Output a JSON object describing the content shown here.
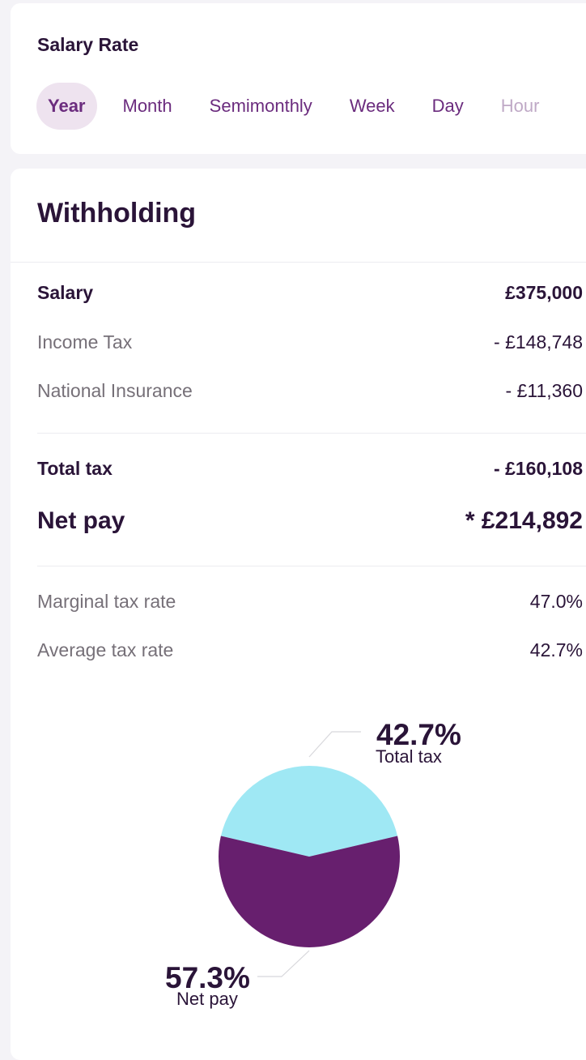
{
  "salary_rate": {
    "title": "Salary Rate",
    "tabs": [
      {
        "label": "Year",
        "active": true
      },
      {
        "label": "Month",
        "active": false
      },
      {
        "label": "Semimonthly",
        "active": false
      },
      {
        "label": "Week",
        "active": false
      },
      {
        "label": "Day",
        "active": false
      },
      {
        "label": "Hour",
        "active": false
      }
    ]
  },
  "withholding": {
    "title": "Withholding",
    "salary": {
      "label": "Salary",
      "value": "£375,000"
    },
    "income_tax": {
      "label": "Income Tax",
      "value": "- £148,748"
    },
    "national_insurance": {
      "label": "National Insurance",
      "value": "- £11,360"
    },
    "total_tax": {
      "label": "Total tax",
      "value": "- £160,108"
    },
    "net_pay": {
      "label": "Net pay",
      "value": "* £214,892"
    },
    "marginal_rate": {
      "label": "Marginal tax rate",
      "value": "47.0%"
    },
    "average_rate": {
      "label": "Average tax rate",
      "value": "42.7%"
    }
  },
  "chart_data": {
    "type": "pie",
    "slices": [
      {
        "name": "Total tax",
        "value": 42.7,
        "label": "42.7%",
        "color": "#9fe8f4"
      },
      {
        "name": "Net pay",
        "value": 57.3,
        "label": "57.3%",
        "color": "#671f6e"
      }
    ]
  }
}
